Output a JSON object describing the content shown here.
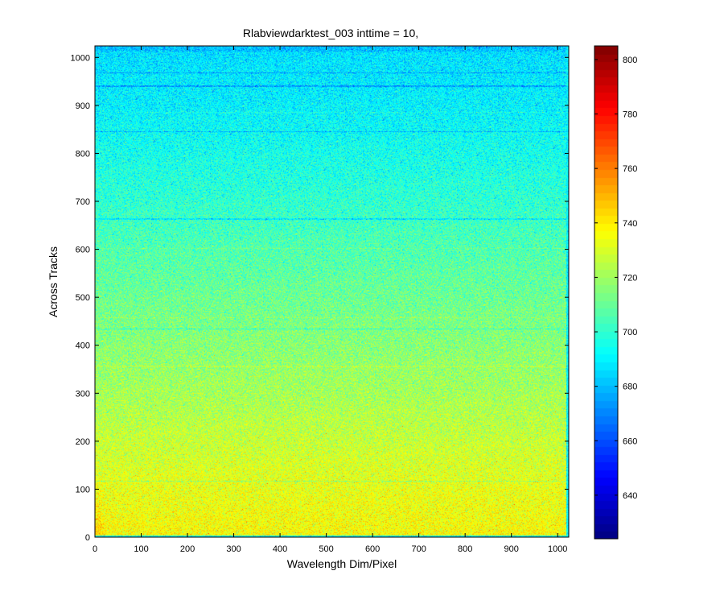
{
  "chart_data": {
    "type": "heatmap",
    "title": "Rlabviewdarktest_003 inttime = 10,",
    "xlabel": "Wavelength Dim/Pixel",
    "ylabel": "Across Tracks",
    "xlim": [
      0,
      1024
    ],
    "ylim": [
      0,
      1024
    ],
    "xticks": [
      0,
      100,
      200,
      300,
      400,
      500,
      600,
      700,
      800,
      900,
      1000
    ],
    "yticks": [
      0,
      100,
      200,
      300,
      400,
      500,
      600,
      700,
      800,
      900,
      1000
    ],
    "colormap": "jet",
    "clim": [
      624,
      805
    ],
    "colorbar_ticks": [
      640,
      660,
      680,
      700,
      720,
      740,
      760,
      780,
      800
    ],
    "colorbar_location": "right",
    "value_profile_by_row": {
      "rows": [
        0,
        50,
        100,
        200,
        300,
        400,
        500,
        600,
        700,
        800,
        900,
        1024
      ],
      "mean": [
        737,
        735,
        733,
        727,
        721,
        716,
        711,
        706,
        700,
        695,
        690,
        686
      ]
    },
    "noise_std": 8,
    "dark_row_lines": [
      117,
      434,
      663,
      845,
      940,
      968
    ],
    "bright_row_lines": [
      356,
      458,
      602,
      885
    ],
    "grid": false
  }
}
